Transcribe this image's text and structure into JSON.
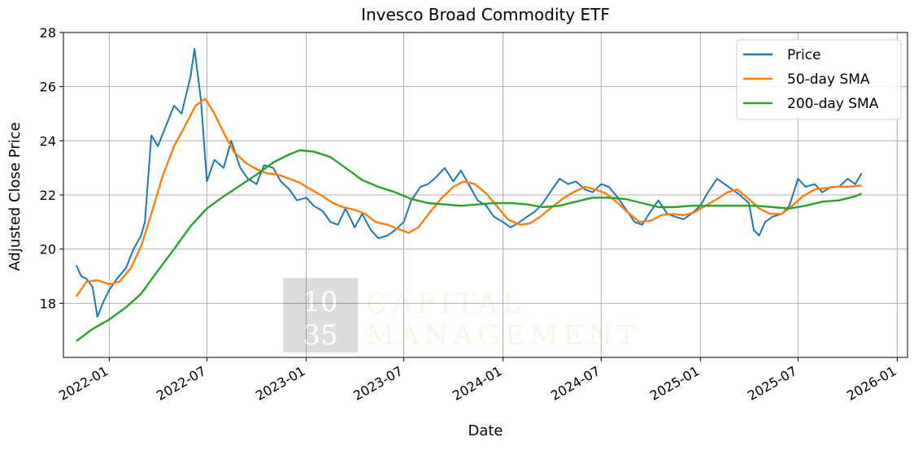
{
  "chart_data": {
    "type": "line",
    "title": "Invesco Broad Commodity ETF",
    "xlabel": "Date",
    "ylabel": "Adjusted Close Price",
    "xlim": [
      "2021-10-08",
      "2026-01-20"
    ],
    "ylim": [
      16.0,
      28.0
    ],
    "x_ticks": [
      "2022-01",
      "2022-07",
      "2023-01",
      "2023-07",
      "2024-01",
      "2024-07",
      "2025-01",
      "2025-07",
      "2026-01"
    ],
    "y_ticks": [
      18,
      20,
      22,
      24,
      26,
      28
    ],
    "grid": true,
    "legend_position": "top-right",
    "series": [
      {
        "name": "Price",
        "color": "#1f77b4",
        "x": [
          "2021-11-01",
          "2021-11-10",
          "2021-11-20",
          "2021-12-01",
          "2021-12-10",
          "2021-12-20",
          "2022-01-01",
          "2022-01-15",
          "2022-02-01",
          "2022-02-15",
          "2022-03-01",
          "2022-03-08",
          "2022-03-20",
          "2022-04-01",
          "2022-04-15",
          "2022-05-01",
          "2022-05-15",
          "2022-06-01",
          "2022-06-08",
          "2022-06-20",
          "2022-07-01",
          "2022-07-15",
          "2022-08-01",
          "2022-08-15",
          "2022-09-01",
          "2022-09-15",
          "2022-10-01",
          "2022-10-15",
          "2022-11-01",
          "2022-11-15",
          "2022-12-01",
          "2022-12-15",
          "2023-01-01",
          "2023-01-15",
          "2023-02-01",
          "2023-02-15",
          "2023-03-01",
          "2023-03-15",
          "2023-04-01",
          "2023-04-15",
          "2023-05-01",
          "2023-05-15",
          "2023-06-01",
          "2023-06-15",
          "2023-07-01",
          "2023-07-15",
          "2023-08-01",
          "2023-08-15",
          "2023-09-01",
          "2023-09-15",
          "2023-10-01",
          "2023-10-15",
          "2023-11-01",
          "2023-11-15",
          "2023-12-01",
          "2023-12-15",
          "2024-01-01",
          "2024-01-15",
          "2024-02-01",
          "2024-02-15",
          "2024-03-01",
          "2024-03-15",
          "2024-04-01",
          "2024-04-15",
          "2024-05-01",
          "2024-05-15",
          "2024-06-01",
          "2024-06-15",
          "2024-07-01",
          "2024-07-15",
          "2024-08-01",
          "2024-08-15",
          "2024-09-01",
          "2024-09-15",
          "2024-10-01",
          "2024-10-15",
          "2024-11-01",
          "2024-11-15",
          "2024-12-01",
          "2024-12-15",
          "2025-01-01",
          "2025-01-15",
          "2025-02-01",
          "2025-02-15",
          "2025-03-01",
          "2025-03-15",
          "2025-04-01",
          "2025-04-10",
          "2025-04-20",
          "2025-05-01",
          "2025-05-15",
          "2025-06-01",
          "2025-06-15",
          "2025-07-01",
          "2025-07-15",
          "2025-08-01",
          "2025-08-15",
          "2025-09-01",
          "2025-09-15",
          "2025-10-01",
          "2025-10-15",
          "2025-10-27"
        ],
        "values": [
          19.4,
          19.0,
          18.9,
          18.6,
          17.5,
          18.0,
          18.5,
          18.9,
          19.3,
          20.0,
          20.5,
          21.0,
          24.2,
          23.8,
          24.5,
          25.3,
          25.0,
          26.4,
          27.4,
          25.5,
          22.5,
          23.3,
          23.0,
          24.0,
          23.0,
          22.6,
          22.4,
          23.1,
          23.0,
          22.5,
          22.2,
          21.8,
          21.9,
          21.6,
          21.4,
          21.0,
          20.9,
          21.5,
          20.8,
          21.3,
          20.7,
          20.4,
          20.5,
          20.7,
          21.0,
          21.8,
          22.3,
          22.4,
          22.7,
          23.0,
          22.5,
          22.9,
          22.3,
          21.8,
          21.6,
          21.2,
          21.0,
          20.8,
          21.0,
          21.2,
          21.4,
          21.7,
          22.2,
          22.6,
          22.4,
          22.5,
          22.2,
          22.1,
          22.4,
          22.3,
          21.9,
          21.5,
          21.0,
          20.9,
          21.4,
          21.8,
          21.3,
          21.2,
          21.1,
          21.3,
          21.6,
          22.1,
          22.6,
          22.4,
          22.2,
          22.0,
          21.7,
          20.7,
          20.5,
          21.0,
          21.2,
          21.3,
          21.6,
          22.6,
          22.3,
          22.4,
          22.1,
          22.3,
          22.3,
          22.6,
          22.4,
          22.8
        ]
      },
      {
        "name": "50-day SMA",
        "color": "#ff7f0e",
        "x": [
          "2021-11-01",
          "2021-11-20",
          "2021-12-10",
          "2022-01-01",
          "2022-01-20",
          "2022-02-10",
          "2022-03-01",
          "2022-03-20",
          "2022-04-10",
          "2022-05-01",
          "2022-05-20",
          "2022-06-10",
          "2022-06-28",
          "2022-07-15",
          "2022-08-01",
          "2022-08-20",
          "2022-09-10",
          "2022-10-01",
          "2022-10-20",
          "2022-11-10",
          "2022-12-01",
          "2022-12-20",
          "2023-01-10",
          "2023-02-01",
          "2023-02-20",
          "2023-03-10",
          "2023-04-01",
          "2023-04-20",
          "2023-05-10",
          "2023-06-01",
          "2023-06-20",
          "2023-07-10",
          "2023-07-28",
          "2023-08-20",
          "2023-09-10",
          "2023-10-01",
          "2023-10-20",
          "2023-11-10",
          "2023-12-01",
          "2023-12-20",
          "2024-01-10",
          "2024-02-01",
          "2024-02-20",
          "2024-03-10",
          "2024-04-01",
          "2024-04-20",
          "2024-05-10",
          "2024-06-01",
          "2024-06-20",
          "2024-07-10",
          "2024-08-01",
          "2024-08-20",
          "2024-09-10",
          "2024-10-01",
          "2024-10-20",
          "2024-11-10",
          "2024-12-01",
          "2024-12-20",
          "2025-01-10",
          "2025-02-01",
          "2025-02-20",
          "2025-03-10",
          "2025-04-01",
          "2025-04-20",
          "2025-05-10",
          "2025-06-01",
          "2025-06-20",
          "2025-07-10",
          "2025-08-01",
          "2025-08-20",
          "2025-09-10",
          "2025-10-01",
          "2025-10-27"
        ],
        "values": [
          18.25,
          18.8,
          18.85,
          18.7,
          18.8,
          19.3,
          20.1,
          21.3,
          22.7,
          23.8,
          24.5,
          25.3,
          25.55,
          25.0,
          24.3,
          23.6,
          23.2,
          22.95,
          22.8,
          22.75,
          22.6,
          22.45,
          22.2,
          21.95,
          21.7,
          21.55,
          21.45,
          21.3,
          21.0,
          20.9,
          20.75,
          20.6,
          20.8,
          21.4,
          21.9,
          22.3,
          22.5,
          22.4,
          22.05,
          21.6,
          21.1,
          20.9,
          20.95,
          21.2,
          21.55,
          21.85,
          22.1,
          22.3,
          22.2,
          22.05,
          21.7,
          21.35,
          21.0,
          21.05,
          21.25,
          21.3,
          21.25,
          21.35,
          21.6,
          21.85,
          22.1,
          22.2,
          21.85,
          21.5,
          21.3,
          21.3,
          21.6,
          21.95,
          22.2,
          22.25,
          22.3,
          22.3,
          22.35
        ]
      },
      {
        "name": "200-day SMA",
        "color": "#2ca02c",
        "x": [
          "2021-11-01",
          "2021-12-01",
          "2022-01-01",
          "2022-02-01",
          "2022-03-01",
          "2022-04-01",
          "2022-05-01",
          "2022-06-01",
          "2022-07-01",
          "2022-08-01",
          "2022-09-01",
          "2022-10-01",
          "2022-11-01",
          "2022-12-01",
          "2022-12-20",
          "2023-01-15",
          "2023-02-15",
          "2023-03-15",
          "2023-04-15",
          "2023-05-15",
          "2023-06-15",
          "2023-07-15",
          "2023-08-15",
          "2023-09-15",
          "2023-10-15",
          "2023-11-15",
          "2023-12-15",
          "2024-01-15",
          "2024-02-15",
          "2024-03-15",
          "2024-04-15",
          "2024-05-15",
          "2024-06-15",
          "2024-07-15",
          "2024-08-15",
          "2024-09-15",
          "2024-10-15",
          "2024-11-15",
          "2024-12-15",
          "2025-01-15",
          "2025-02-15",
          "2025-03-15",
          "2025-04-15",
          "2025-05-15",
          "2025-06-15",
          "2025-07-15",
          "2025-08-15",
          "2025-09-15",
          "2025-10-15",
          "2025-10-27"
        ],
        "values": [
          16.6,
          17.05,
          17.4,
          17.85,
          18.35,
          19.2,
          20.0,
          20.85,
          21.5,
          21.95,
          22.35,
          22.75,
          23.2,
          23.5,
          23.65,
          23.6,
          23.4,
          23.0,
          22.55,
          22.3,
          22.1,
          21.85,
          21.7,
          21.65,
          21.6,
          21.65,
          21.7,
          21.7,
          21.65,
          21.55,
          21.6,
          21.75,
          21.9,
          21.9,
          21.85,
          21.7,
          21.55,
          21.55,
          21.6,
          21.6,
          21.6,
          21.6,
          21.6,
          21.55,
          21.5,
          21.6,
          21.75,
          21.8,
          21.95,
          22.05
        ]
      }
    ],
    "watermark": {
      "logo_lines": [
        "10",
        "35"
      ],
      "text_lines": [
        "CAPITAL",
        "MANAGEMENT"
      ]
    }
  }
}
